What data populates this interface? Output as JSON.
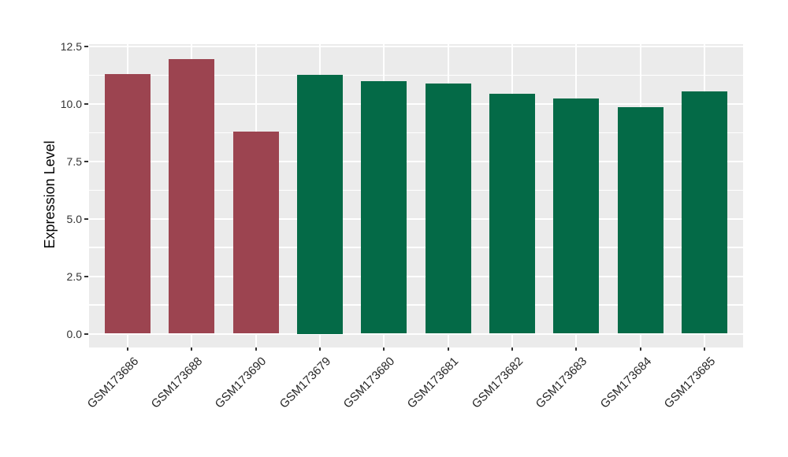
{
  "chart_data": {
    "type": "bar",
    "title": "",
    "ylabel": "Expression Level",
    "xlabel": "",
    "categories": [
      "GSM173686",
      "GSM173688",
      "GSM173690",
      "GSM173679",
      "GSM173680",
      "GSM173681",
      "GSM173682",
      "GSM173683",
      "GSM173684",
      "GSM173685"
    ],
    "values": [
      11.3,
      11.95,
      8.8,
      11.25,
      11.0,
      10.9,
      10.45,
      10.25,
      9.85,
      10.55
    ],
    "bar_colors": [
      "#9C4450",
      "#9C4450",
      "#9C4450",
      "#046A47",
      "#046A47",
      "#046A47",
      "#046A47",
      "#046A47",
      "#046A47",
      "#046A47"
    ],
    "group_colors": {
      "first_group": "#9C4450",
      "second_group": "#046A47"
    },
    "ylim": [
      0,
      12.6
    ],
    "yticks": [
      {
        "value": 0,
        "label": "0.0"
      },
      {
        "value": 2.5,
        "label": "2.5"
      },
      {
        "value": 5,
        "label": "5.0"
      },
      {
        "value": 7.5,
        "label": "7.5"
      },
      {
        "value": 10,
        "label": "10.0"
      },
      {
        "value": 12.5,
        "label": "12.5"
      }
    ],
    "yticks_minor": [
      1.25,
      3.75,
      6.25,
      8.75,
      11.25
    ],
    "legend": "none",
    "grid": "on",
    "panel_background": "#EBEBEB",
    "gridline_color": "#FFFFFF",
    "tick_label_color": "#333333",
    "axis_title_color": "#000000",
    "x_label_rotation_deg": 45
  }
}
